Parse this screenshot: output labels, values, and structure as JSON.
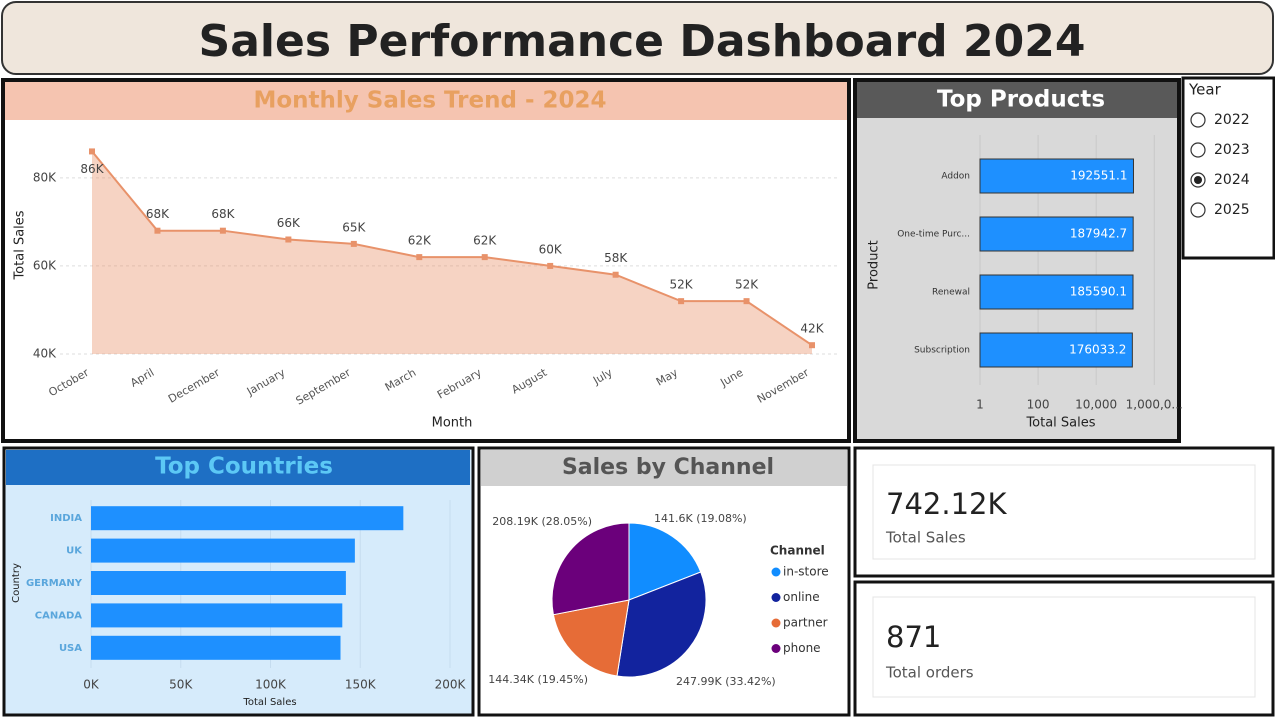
{
  "header": {
    "title": "Sales Performance Dashboard 2024"
  },
  "chart_data": [
    {
      "type": "line",
      "title": "Monthly Sales Trend - 2024",
      "x_label": "Month",
      "y_label": "Total Sales",
      "categories": [
        "October",
        "April",
        "December",
        "January",
        "September",
        "March",
        "February",
        "August",
        "July",
        "May",
        "June",
        "November"
      ],
      "values": [
        86000,
        68000,
        68000,
        66000,
        65000,
        62000,
        62000,
        60000,
        58000,
        52000,
        52000,
        42000
      ],
      "value_labels": [
        "86K",
        "68K",
        "68K",
        "66K",
        "65K",
        "62K",
        "62K",
        "60K",
        "58K",
        "52K",
        "52K",
        "42K"
      ],
      "color": "#e8926a",
      "area": true,
      "grid": true,
      "ylim": [
        40000,
        92000
      ],
      "yticks": [
        {
          "value": 40000,
          "label": "40K"
        },
        {
          "value": 60000,
          "label": "60K"
        },
        {
          "value": 80000,
          "label": "80K"
        }
      ]
    },
    {
      "type": "bar",
      "orientation": "horizontal",
      "title": "Top Products",
      "x_label": "Total Sales",
      "y_label": "Product",
      "categories": [
        "Addon",
        "One-time Purc...",
        "Renewal",
        "Subscription"
      ],
      "values": [
        192551.1,
        187942.7,
        185590.1,
        176033.2
      ],
      "color": "#1e90ff",
      "log_scale": true,
      "grid": true,
      "show_values": true,
      "xlim": [
        1,
        2000000
      ],
      "xticks": [
        1,
        100,
        {
          "value": 10000,
          "label": "10,000"
        },
        {
          "value": 1000000,
          "label": "1,000,0..."
        }
      ]
    },
    {
      "type": "bar",
      "orientation": "horizontal",
      "title": "Top Countries",
      "x_label": "Total Sales",
      "y_label": "Country",
      "categories": [
        "INDIA",
        "UK",
        "GERMANY",
        "CANADA",
        "USA"
      ],
      "values": [
        174000,
        147000,
        142000,
        140000,
        139000
      ],
      "color": "#1e90ff",
      "log_scale": false,
      "grid": true,
      "show_values": false,
      "xlim": [
        0,
        200000
      ],
      "xticks": [
        {
          "value": 0,
          "label": "0K"
        },
        {
          "value": 50000,
          "label": "50K"
        },
        {
          "value": 100000,
          "label": "100K"
        },
        {
          "value": 150000,
          "label": "150K"
        },
        {
          "value": 200000,
          "label": "200K"
        }
      ]
    },
    {
      "type": "pie",
      "title": "Sales by Channel",
      "legend_title": "Channel",
      "categories": [
        "in-store",
        "online",
        "partner",
        "phone"
      ],
      "values": [
        141600,
        247990,
        144340,
        208190
      ],
      "value_labels": [
        "141.6K (19.08%)",
        "247.99K (33.42%)",
        "144.34K (19.45%)",
        "208.19K (28.05%)"
      ],
      "colors": [
        "#118dff",
        "#12239e",
        "#e66c37",
        "#6b007b"
      ],
      "legend_position": "right"
    }
  ],
  "year_slicer": {
    "title": "Year",
    "options": [
      2022,
      2023,
      2024,
      2025
    ],
    "selected": 2024
  },
  "kpis": [
    {
      "value": "742.12K",
      "label": "Total Sales"
    },
    {
      "value": 871,
      "label": "Total orders"
    }
  ]
}
